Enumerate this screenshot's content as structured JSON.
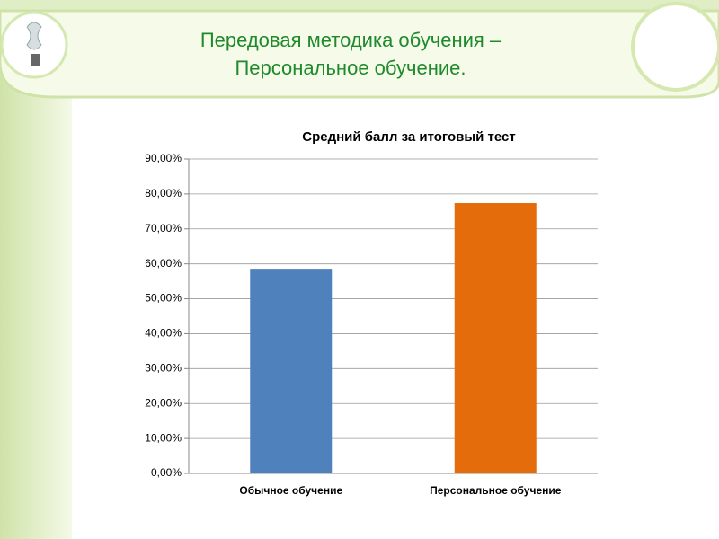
{
  "slide": {
    "title": [
      "Передовая методика обучения –",
      "Персональное обучение."
    ]
  },
  "chart_data": {
    "type": "bar",
    "title": "Средний балл за итоговый тест",
    "categories": [
      "Обычное обучение",
      "Персональное обучение"
    ],
    "values": [
      58.6,
      77.4
    ],
    "colors": [
      "#4f81bd",
      "#e46c0a"
    ],
    "ylim": [
      0,
      90
    ],
    "yticks": [
      {
        "value": 0,
        "label": "0,00%"
      },
      {
        "value": 10,
        "label": "10,00%"
      },
      {
        "value": 20,
        "label": "20,00%"
      },
      {
        "value": 30,
        "label": "30,00%"
      },
      {
        "value": 40,
        "label": "40,00%"
      },
      {
        "value": 50,
        "label": "50,00%"
      },
      {
        "value": 60,
        "label": "60,00%"
      },
      {
        "value": 70,
        "label": "70,00%"
      },
      {
        "value": 80,
        "label": "80,00%"
      },
      {
        "value": 90,
        "label": "90,00%"
      }
    ],
    "grid": true
  }
}
